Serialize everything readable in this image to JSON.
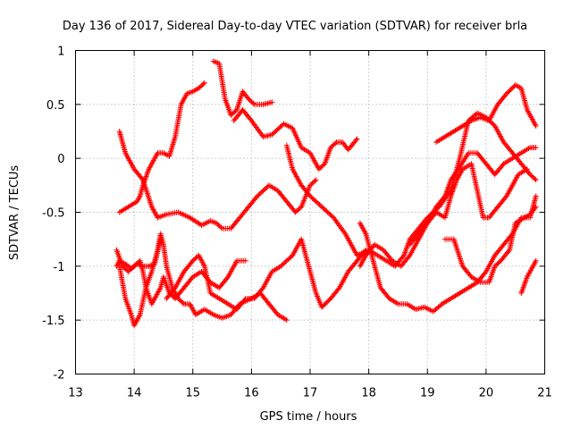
{
  "chart_data": {
    "type": "scatter",
    "title": "Day 136 of 2017, Sidereal Day-to-day VTEC variation (SDTVAR) for receiver brla",
    "xlabel": "GPS time / hours",
    "ylabel": "SDTVAR / TECUs",
    "xlim": [
      13,
      21
    ],
    "ylim": [
      -2,
      1
    ],
    "xticks": [
      "13",
      "14",
      "15",
      "16",
      "17",
      "18",
      "19",
      "20",
      "21"
    ],
    "yticks": [
      "-2",
      "-1.5",
      "-1",
      "-0.5",
      "0",
      "0.5",
      "1"
    ],
    "grid": true,
    "marker": "+",
    "color": "#ff0000",
    "series": [
      {
        "name": "pass-1",
        "points": [
          [
            13.75,
            -0.5
          ],
          [
            13.9,
            -0.45
          ],
          [
            14.05,
            -0.4
          ],
          [
            14.1,
            -0.35
          ],
          [
            14.15,
            -0.25
          ],
          [
            14.25,
            -0.1
          ],
          [
            14.4,
            0.05
          ],
          [
            14.5,
            0.05
          ],
          [
            14.6,
            0.02
          ],
          [
            14.7,
            0.2
          ],
          [
            14.8,
            0.5
          ],
          [
            14.9,
            0.6
          ],
          [
            15.0,
            0.62
          ],
          [
            15.1,
            0.65
          ],
          [
            15.2,
            0.7
          ]
        ]
      },
      {
        "name": "pass-2",
        "points": [
          [
            15.35,
            0.9
          ],
          [
            15.45,
            0.88
          ],
          [
            15.55,
            0.55
          ],
          [
            15.65,
            0.4
          ],
          [
            15.75,
            0.45
          ],
          [
            15.85,
            0.62
          ],
          [
            15.95,
            0.55
          ],
          [
            16.05,
            0.5
          ],
          [
            16.2,
            0.5
          ],
          [
            16.35,
            0.52
          ]
        ]
      },
      {
        "name": "pass-3",
        "points": [
          [
            13.75,
            0.25
          ],
          [
            13.85,
            0.05
          ],
          [
            14.0,
            -0.1
          ],
          [
            14.15,
            -0.2
          ],
          [
            14.3,
            -0.45
          ],
          [
            14.4,
            -0.55
          ],
          [
            14.55,
            -0.52
          ],
          [
            14.75,
            -0.5
          ],
          [
            14.95,
            -0.55
          ],
          [
            15.15,
            -0.62
          ],
          [
            15.3,
            -0.58
          ],
          [
            15.4,
            -0.6
          ],
          [
            15.5,
            -0.65
          ],
          [
            15.65,
            -0.65
          ],
          [
            15.8,
            -0.55
          ],
          [
            15.95,
            -0.45
          ],
          [
            16.1,
            -0.35
          ],
          [
            16.3,
            -0.25
          ],
          [
            16.45,
            -0.3
          ],
          [
            16.6,
            -0.4
          ],
          [
            16.75,
            -0.5
          ],
          [
            16.85,
            -0.45
          ],
          [
            17.0,
            -0.25
          ],
          [
            17.1,
            -0.2
          ]
        ]
      },
      {
        "name": "pass-4",
        "points": [
          [
            15.7,
            0.35
          ],
          [
            15.85,
            0.45
          ],
          [
            16.0,
            0.35
          ],
          [
            16.2,
            0.2
          ],
          [
            16.35,
            0.22
          ],
          [
            16.55,
            0.32
          ],
          [
            16.7,
            0.28
          ],
          [
            16.85,
            0.1
          ],
          [
            17.0,
            0.05
          ],
          [
            17.15,
            -0.1
          ],
          [
            17.25,
            -0.05
          ],
          [
            17.35,
            0.1
          ],
          [
            17.45,
            0.15
          ],
          [
            17.55,
            0.15
          ],
          [
            17.65,
            0.08
          ],
          [
            17.8,
            0.18
          ]
        ]
      },
      {
        "name": "pass-5",
        "points": [
          [
            16.6,
            0.12
          ],
          [
            16.7,
            -0.1
          ],
          [
            16.85,
            -0.25
          ],
          [
            17.0,
            -0.35
          ],
          [
            17.2,
            -0.45
          ],
          [
            17.4,
            -0.55
          ],
          [
            17.6,
            -0.7
          ],
          [
            17.8,
            -0.9
          ],
          [
            18.0,
            -0.85
          ],
          [
            18.15,
            -0.9
          ],
          [
            18.3,
            -0.95
          ],
          [
            18.45,
            -1.0
          ],
          [
            18.6,
            -0.9
          ],
          [
            18.7,
            -0.75
          ],
          [
            18.85,
            -0.65
          ],
          [
            19.0,
            -0.55
          ],
          [
            19.2,
            -0.45
          ],
          [
            19.4,
            -0.3
          ],
          [
            19.55,
            0.0
          ],
          [
            19.7,
            0.35
          ],
          [
            19.85,
            0.42
          ],
          [
            20.0,
            0.38
          ],
          [
            20.15,
            0.3
          ],
          [
            20.3,
            0.15
          ],
          [
            20.45,
            0.05
          ],
          [
            20.6,
            -0.05
          ],
          [
            20.75,
            -0.15
          ],
          [
            20.85,
            -0.2
          ]
        ]
      },
      {
        "name": "pass-6",
        "points": [
          [
            13.7,
            -0.85
          ],
          [
            13.8,
            -1.0
          ],
          [
            13.9,
            -1.05
          ],
          [
            14.0,
            -1.0
          ],
          [
            14.1,
            -0.95
          ],
          [
            14.15,
            -1.05
          ],
          [
            14.2,
            -1.2
          ],
          [
            14.3,
            -1.35
          ],
          [
            14.35,
            -1.3
          ],
          [
            14.45,
            -1.2
          ],
          [
            14.5,
            -1.1
          ],
          [
            14.6,
            -1.25
          ],
          [
            14.7,
            -1.3
          ],
          [
            14.85,
            -1.2
          ],
          [
            15.0,
            -1.1
          ],
          [
            15.15,
            -1.05
          ],
          [
            15.3,
            -1.15
          ],
          [
            15.45,
            -1.2
          ],
          [
            15.6,
            -1.1
          ],
          [
            15.75,
            -0.95
          ],
          [
            15.9,
            -0.95
          ]
        ]
      },
      {
        "name": "pass-7",
        "points": [
          [
            13.75,
            -1.0
          ],
          [
            13.85,
            -1.3
          ],
          [
            13.95,
            -1.45
          ],
          [
            14.0,
            -1.55
          ],
          [
            14.1,
            -1.45
          ],
          [
            14.2,
            -1.2
          ],
          [
            14.3,
            -1.05
          ],
          [
            14.4,
            -0.85
          ],
          [
            14.45,
            -0.7
          ],
          [
            14.5,
            -0.8
          ],
          [
            14.55,
            -1.0
          ],
          [
            14.65,
            -1.2
          ],
          [
            14.75,
            -1.3
          ],
          [
            14.85,
            -1.35
          ],
          [
            14.95,
            -1.35
          ],
          [
            15.05,
            -1.45
          ],
          [
            15.2,
            -1.4
          ],
          [
            15.35,
            -1.45
          ],
          [
            15.5,
            -1.48
          ],
          [
            15.65,
            -1.45
          ],
          [
            15.8,
            -1.35
          ],
          [
            16.0,
            -1.3
          ],
          [
            16.15,
            -1.25
          ],
          [
            16.3,
            -1.35
          ],
          [
            16.45,
            -1.45
          ],
          [
            16.6,
            -1.5
          ]
        ]
      },
      {
        "name": "pass-8",
        "points": [
          [
            14.55,
            -1.3
          ],
          [
            14.7,
            -1.2
          ],
          [
            14.85,
            -1.05
          ],
          [
            15.0,
            -0.95
          ],
          [
            15.1,
            -0.9
          ],
          [
            15.2,
            -1.0
          ],
          [
            15.3,
            -1.25
          ],
          [
            15.45,
            -1.3
          ],
          [
            15.6,
            -1.35
          ],
          [
            15.75,
            -1.4
          ],
          [
            15.9,
            -1.3
          ],
          [
            16.05,
            -1.3
          ],
          [
            16.2,
            -1.2
          ],
          [
            16.35,
            -1.05
          ],
          [
            16.5,
            -1.0
          ],
          [
            16.6,
            -0.95
          ],
          [
            16.7,
            -0.9
          ],
          [
            16.85,
            -0.75
          ],
          [
            17.0,
            -1.05
          ],
          [
            17.1,
            -1.25
          ],
          [
            17.2,
            -1.38
          ],
          [
            17.35,
            -1.3
          ],
          [
            17.5,
            -1.2
          ],
          [
            17.65,
            -1.05
          ],
          [
            17.8,
            -0.95
          ],
          [
            17.95,
            -0.85
          ]
        ]
      },
      {
        "name": "pass-9",
        "points": [
          [
            17.85,
            -0.6
          ],
          [
            17.95,
            -0.7
          ],
          [
            18.05,
            -0.9
          ],
          [
            18.2,
            -1.2
          ],
          [
            18.35,
            -1.3
          ],
          [
            18.5,
            -1.35
          ],
          [
            18.65,
            -1.35
          ],
          [
            18.8,
            -1.4
          ],
          [
            18.95,
            -1.38
          ],
          [
            19.1,
            -1.42
          ],
          [
            19.25,
            -1.35
          ],
          [
            19.4,
            -1.3
          ],
          [
            19.55,
            -1.25
          ],
          [
            19.7,
            -1.2
          ],
          [
            19.85,
            -1.15
          ],
          [
            20.0,
            -1.05
          ],
          [
            20.15,
            -0.9
          ],
          [
            20.3,
            -0.8
          ],
          [
            20.45,
            -0.7
          ],
          [
            20.6,
            -0.55
          ],
          [
            20.75,
            -0.55
          ],
          [
            20.85,
            -0.35
          ]
        ]
      },
      {
        "name": "pass-10",
        "points": [
          [
            19.15,
            0.15
          ],
          [
            19.3,
            0.2
          ],
          [
            19.45,
            0.25
          ],
          [
            19.6,
            0.3
          ],
          [
            19.75,
            0.35
          ],
          [
            19.9,
            0.38
          ],
          [
            20.05,
            0.35
          ],
          [
            20.2,
            0.5
          ],
          [
            20.35,
            0.6
          ],
          [
            20.5,
            0.68
          ],
          [
            20.6,
            0.65
          ],
          [
            20.7,
            0.45
          ],
          [
            20.8,
            0.35
          ],
          [
            20.85,
            0.3
          ]
        ]
      },
      {
        "name": "pass-11",
        "points": [
          [
            18.7,
            -0.8
          ],
          [
            18.85,
            -0.7
          ],
          [
            19.0,
            -0.6
          ],
          [
            19.15,
            -0.45
          ],
          [
            19.3,
            -0.35
          ],
          [
            19.4,
            -0.2
          ],
          [
            19.55,
            -0.08
          ],
          [
            19.7,
            0.05
          ],
          [
            19.85,
            0.05
          ],
          [
            20.0,
            -0.05
          ],
          [
            20.15,
            -0.15
          ],
          [
            20.3,
            -0.05
          ],
          [
            20.45,
            0.0
          ],
          [
            20.6,
            0.05
          ],
          [
            20.75,
            0.1
          ],
          [
            20.85,
            0.1
          ]
        ]
      },
      {
        "name": "pass-12",
        "points": [
          [
            17.85,
            -1.0
          ],
          [
            17.95,
            -0.9
          ],
          [
            18.1,
            -0.8
          ],
          [
            18.25,
            -0.85
          ],
          [
            18.4,
            -0.95
          ],
          [
            18.55,
            -1.0
          ],
          [
            18.7,
            -0.9
          ],
          [
            18.85,
            -0.75
          ],
          [
            19.0,
            -0.6
          ],
          [
            19.15,
            -0.5
          ],
          [
            19.3,
            -0.55
          ],
          [
            19.4,
            -0.35
          ],
          [
            19.5,
            -0.2
          ],
          [
            19.6,
            -0.1
          ],
          [
            19.75,
            -0.05
          ],
          [
            19.85,
            -0.3
          ],
          [
            19.95,
            -0.55
          ],
          [
            20.05,
            -0.55
          ],
          [
            20.2,
            -0.45
          ],
          [
            20.35,
            -0.35
          ],
          [
            20.45,
            -0.25
          ],
          [
            20.55,
            -0.15
          ],
          [
            20.7,
            -0.1
          ]
        ]
      },
      {
        "name": "pass-13",
        "points": [
          [
            19.3,
            -0.75
          ],
          [
            19.45,
            -0.75
          ],
          [
            19.6,
            -1.0
          ],
          [
            19.75,
            -1.1
          ],
          [
            19.9,
            -1.15
          ],
          [
            20.05,
            -1.15
          ],
          [
            20.15,
            -1.0
          ],
          [
            20.25,
            -0.95
          ],
          [
            20.4,
            -0.85
          ],
          [
            20.5,
            -0.6
          ],
          [
            20.65,
            -0.55
          ],
          [
            20.75,
            -0.52
          ],
          [
            20.85,
            -0.45
          ]
        ]
      },
      {
        "name": "pass-14",
        "points": [
          [
            20.6,
            -1.25
          ],
          [
            20.7,
            -1.1
          ],
          [
            20.8,
            -1.0
          ],
          [
            20.85,
            -0.95
          ]
        ]
      },
      {
        "name": "pass-15",
        "points": [
          [
            13.7,
            -1.0
          ],
          [
            13.75,
            -0.95
          ],
          [
            13.85,
            -0.98
          ],
          [
            13.95,
            -1.02
          ],
          [
            14.05,
            -0.98
          ],
          [
            14.15,
            -1.0
          ],
          [
            14.25,
            -1.0
          ],
          [
            14.35,
            -0.98
          ],
          [
            14.45,
            -0.75
          ]
        ]
      }
    ]
  }
}
